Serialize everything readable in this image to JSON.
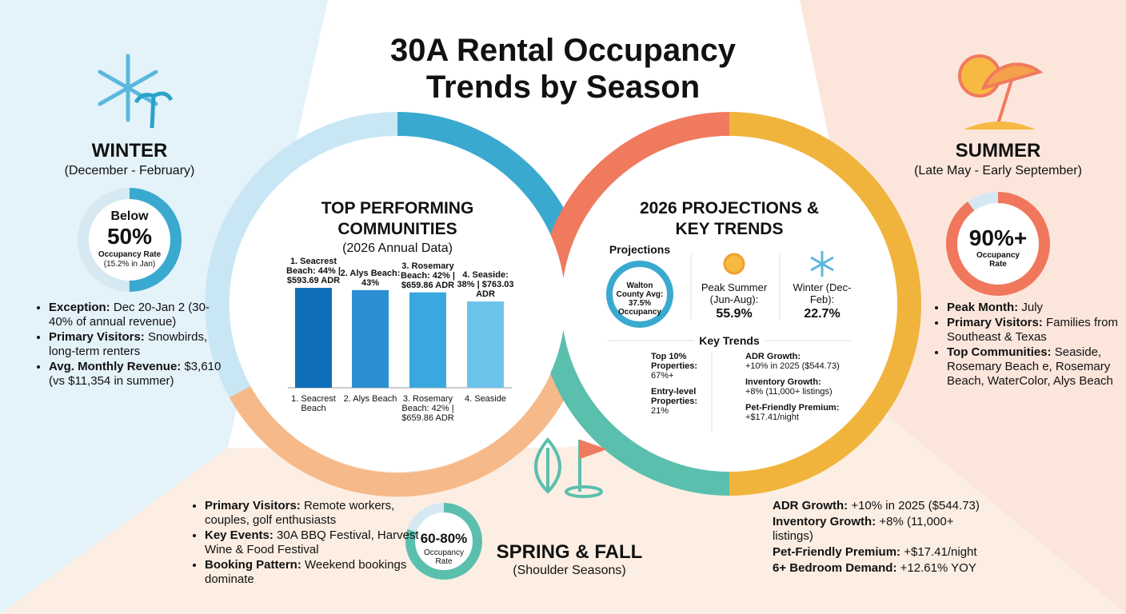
{
  "title": "30A Rental Occupancy Trends by Season",
  "winter": {
    "name": "WINTER",
    "period": "(December - February)",
    "gauge": {
      "prefix": "Below",
      "value": 50,
      "label": "50%",
      "caption": "Occupancy Rate",
      "note": "(15.2% in Jan)",
      "color": "#3aa9d0"
    },
    "bullets": [
      {
        "label": "Exception:",
        "text": "Dec 20-Jan 2 (30-40% of annual revenue)"
      },
      {
        "label": "Primary Visitors:",
        "text": "Snowbirds, long-term renters"
      },
      {
        "label": "Avg. Monthly Revenue:",
        "text": "$3,610 (vs $11,354 in summer)"
      }
    ]
  },
  "summer": {
    "name": "SUMMER",
    "period": "(Late May - Early September)",
    "gauge": {
      "value": 90,
      "label": "90%+",
      "caption": "Occupancy Rate",
      "color": "#f0775c"
    },
    "bullets": [
      {
        "label": "Peak Month:",
        "text": "July"
      },
      {
        "label": "Primary Visitors:",
        "text": "Families from Southeast & Texas"
      },
      {
        "label": "Top Communities:",
        "text": "Seaside, Rosemary Beach e, Rosemary Beach, WaterColor, Alys Beach"
      }
    ]
  },
  "spring_fall": {
    "name": "SPRING & FALL",
    "period": "(Shoulder Seasons)",
    "gauge": {
      "low": 60,
      "high": 80,
      "label": "60-80%",
      "caption": "Occupancy Rate",
      "color": "#5bbfae"
    },
    "bullets": [
      {
        "label": "Primary Visitors:",
        "text": "Remote workers, couples, golf enthusiasts"
      },
      {
        "label": "Key Events:",
        "text": "30A BBQ Festival, Harvest Wine & Food Festival"
      },
      {
        "label": "Booking Pattern:",
        "text": "Weekend bookings dominate"
      }
    ]
  },
  "chart_data": {
    "type": "bar",
    "title": "TOP PERFORMING COMMUNITIES",
    "subtitle": "(2026 Annual Data)",
    "categories": [
      "1. Seacrest Beach",
      "2. Alys Beach",
      "3. Rosemary Beach: 42% | $659.86 ADR",
      "4. Seaside"
    ],
    "values": [
      44,
      43,
      42,
      38
    ],
    "value_labels": [
      "1. Seacrest Beach: 44% | $593.69 ADR",
      "2. Alys Beach: 43%",
      "3. Rosemary Beach: 42% | $659.86 ADR",
      "4. Seaside: 38% | $763.03 ADR"
    ],
    "colors": [
      "#0f6fb8",
      "#2a8fd3",
      "#3aa8e0",
      "#6cc4ec"
    ]
  },
  "projections": {
    "title": "2026 PROJECTIONS & KEY TRENDS",
    "heading": "Projections",
    "county": "Walton County Avg: 37.5% Occupancy",
    "summer_label": "Peak Summer (Jun-Aug):",
    "summer_value": "55.9%",
    "winter_label": "Winter (Dec-Feb):",
    "winter_value": "22.7%",
    "trends_heading": "Key Trends",
    "trends_left": [
      {
        "label": "Top 10% Properties:",
        "text": "67%+"
      },
      {
        "label": "Entry-level Properties:",
        "text": "21%"
      }
    ],
    "trends_right": [
      {
        "label": "ADR Growth:",
        "text": "+10% in 2025 ($544.73)"
      },
      {
        "label": "Inventory Growth:",
        "text": "+8% (11,000+ listings)"
      },
      {
        "label": "Pet-Friendly Premium:",
        "text": "+$17.41/night"
      }
    ]
  },
  "highlights": [
    {
      "label": "ADR Growth:",
      "text": "+10% in 2025 ($544.73)"
    },
    {
      "label": "Inventory Growth:",
      "text": "+8% (11,000+ listings)"
    },
    {
      "label": "Pet-Friendly Premium:",
      "text": "+$17.41/night"
    },
    {
      "label": "6+ Bedroom Demand:",
      "text": "+12.61% YOY"
    }
  ]
}
